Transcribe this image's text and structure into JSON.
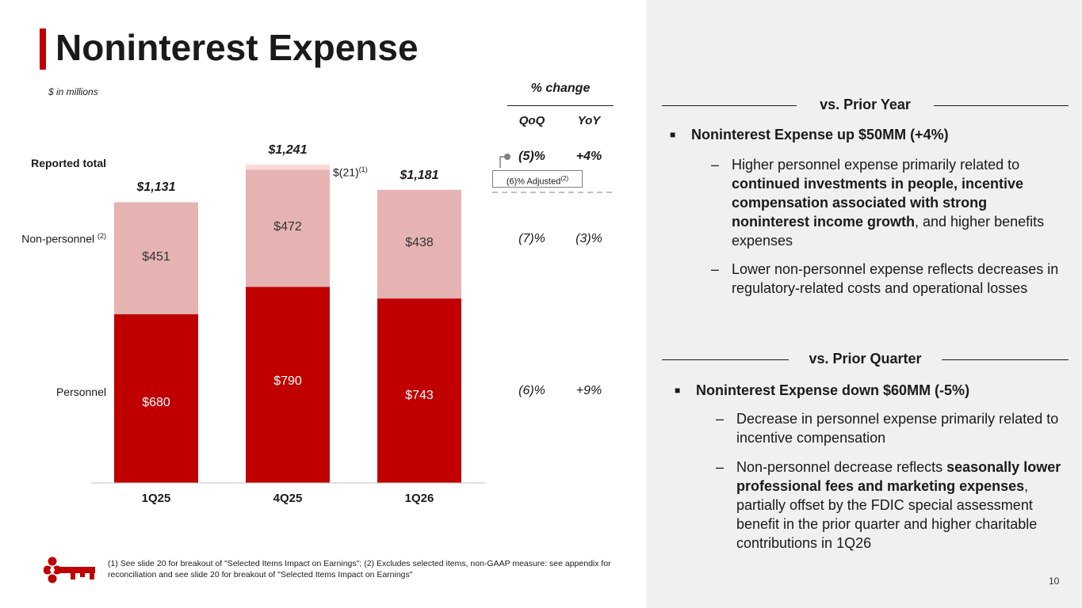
{
  "slide": {
    "title": "Noninterest Expense",
    "units_note": "$ in millions",
    "page_number": "10",
    "footnote": "(1) See slide 20 for breakout of \"Selected Items Impact on Earnings\"; (2) Excludes selected items, non-GAAP measure: see appendix for reconciliation and see slide 20 for breakout of \"Selected Items Impact on Earnings\""
  },
  "chart_data": {
    "type": "bar",
    "stacked": true,
    "categories": [
      "1Q25",
      "4Q25",
      "1Q26"
    ],
    "series": [
      {
        "name": "Personnel",
        "values": [
          680,
          790,
          743
        ],
        "labels": [
          "$680",
          "$790",
          "$743"
        ],
        "color": "#c00000"
      },
      {
        "name": "Non-personnel",
        "name_sup": "(2)",
        "values": [
          451,
          472,
          438
        ],
        "labels": [
          "$451",
          "$472",
          "$438"
        ],
        "color": "#e6b3b3"
      },
      {
        "name": "Selected items",
        "values": [
          0,
          -21,
          0
        ],
        "labels": [
          "",
          "$(21)",
          ""
        ],
        "label_sup": "(1)",
        "color": "#fbd9d9"
      }
    ],
    "totals": [
      1131,
      1241,
      1181
    ],
    "total_labels": [
      "$1,131",
      "$1,241",
      "$1,181"
    ],
    "total_row_label": "Reported total",
    "ylim": [
      0,
      1300
    ],
    "title": "",
    "xlabel": "",
    "ylabel": ""
  },
  "pct_change": {
    "title": "% change",
    "headers": [
      "QoQ",
      "YoY"
    ],
    "rows": [
      {
        "row": "Reported total",
        "qoq": "(5)%",
        "yoy": "+4%",
        "bold": true
      },
      {
        "row": "Non-personnel",
        "qoq": "(7)%",
        "yoy": "(3)%",
        "bold": false
      },
      {
        "row": "Personnel",
        "qoq": "(6)%",
        "yoy": "+9%",
        "bold": false
      }
    ],
    "adjusted_note": "(6)% Adjusted",
    "adjusted_sup": "(2)"
  },
  "vs_prior_year": {
    "heading": "vs. Prior Year",
    "main": "Noninterest Expense up $50MM (+4%)",
    "sub1_before": "Higher personnel expense primarily related to ",
    "sub1_bold": "continued investments in people, incentive compensation associated with strong noninterest income growth",
    "sub1_after": ", and higher benefits expenses",
    "sub2": "Lower non-personnel expense reflects decreases in regulatory-related costs and operational losses"
  },
  "vs_prior_quarter": {
    "heading": "vs. Prior Quarter",
    "main": "Noninterest Expense down $60MM (-5%)",
    "sub1": "Decrease in personnel expense primarily related to incentive compensation",
    "sub2_before": "Non-personnel decrease reflects ",
    "sub2_bold": "seasonally lower professional fees and marketing expenses",
    "sub2_after": ", partially offset by the FDIC special assessment benefit in the prior quarter and higher charitable contributions in 1Q26"
  },
  "colors": {
    "accent": "#c00000",
    "personnel": "#c00000",
    "non_personnel": "#e6b3b3",
    "selected_items": "#fbd9d9",
    "panel_bg": "#f0f0f0"
  }
}
